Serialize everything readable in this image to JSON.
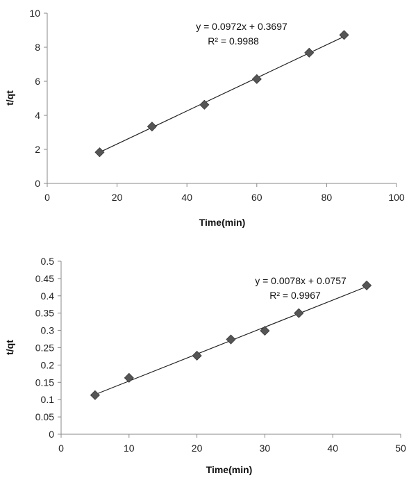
{
  "chart_data": [
    {
      "type": "scatter",
      "xlabel": "Time(min)",
      "ylabel": "t/qt",
      "xlim": [
        0,
        100
      ],
      "ylim": [
        0,
        10
      ],
      "x_ticks": [
        "0",
        "20",
        "40",
        "60",
        "80",
        "100"
      ],
      "y_ticks": [
        "0",
        "2",
        "4",
        "6",
        "8",
        "10"
      ],
      "grid": false,
      "marker": "diamond",
      "marker_color": "#555555",
      "points": [
        {
          "x": 15,
          "y": 1.83
        },
        {
          "x": 30,
          "y": 3.34
        },
        {
          "x": 45,
          "y": 4.62
        },
        {
          "x": 60,
          "y": 6.13
        },
        {
          "x": 75,
          "y": 7.68
        },
        {
          "x": 85,
          "y": 8.72
        }
      ],
      "trendline": {
        "slope": 0.0972,
        "intercept": 0.3697,
        "x_range": [
          15,
          85
        ]
      },
      "equation": "y = 0.0972x + 0.3697",
      "r_squared": "R² = 0.9988"
    },
    {
      "type": "scatter",
      "xlabel": "Time(min)",
      "ylabel": "t/qt",
      "xlim": [
        0,
        50
      ],
      "ylim": [
        0,
        0.5
      ],
      "x_ticks": [
        "0",
        "10",
        "20",
        "30",
        "40",
        "50"
      ],
      "y_ticks": [
        "0",
        "0.05",
        "0.1",
        "0.15",
        "0.2",
        "0.25",
        "0.3",
        "0.35",
        "0.4",
        "0.45",
        "0.5"
      ],
      "grid": false,
      "marker": "diamond",
      "marker_color": "#555555",
      "points": [
        {
          "x": 5,
          "y": 0.113
        },
        {
          "x": 10,
          "y": 0.163
        },
        {
          "x": 20,
          "y": 0.227
        },
        {
          "x": 25,
          "y": 0.274
        },
        {
          "x": 30,
          "y": 0.299
        },
        {
          "x": 35,
          "y": 0.35
        },
        {
          "x": 45,
          "y": 0.43
        }
      ],
      "trendline": {
        "slope": 0.0078,
        "intercept": 0.0757,
        "x_range": [
          5,
          45
        ]
      },
      "equation": "y = 0.0078x + 0.0757",
      "r_squared": "R² = 0.9967"
    }
  ]
}
